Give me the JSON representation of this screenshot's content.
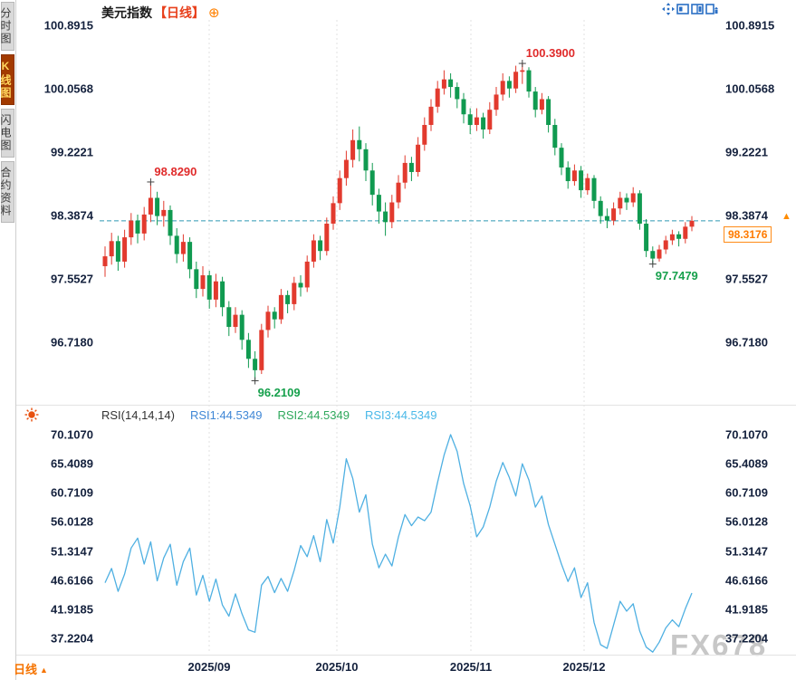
{
  "sidebar": {
    "items": [
      {
        "label": "分时图",
        "active": false
      },
      {
        "label": "K线图",
        "active": true
      },
      {
        "label": "闪电图",
        "active": false
      },
      {
        "label": "合约资料",
        "active": false
      }
    ]
  },
  "header": {
    "symbol": "美元指数",
    "timeframe_tag": "【日线】",
    "add_icon": "⊕"
  },
  "toolbar": {
    "icons": [
      "expand-arrows",
      "layout-single",
      "layout-split",
      "layout-pop-right"
    ]
  },
  "price_panel": {
    "axis_labels": [
      "100.8915",
      "100.0568",
      "99.2221",
      "98.3874",
      "97.5527",
      "96.7180"
    ],
    "current_price": "98.3176",
    "marker_arrow": "▲"
  },
  "rsi_panel": {
    "title": "RSI(14,14,14)",
    "legend": [
      {
        "text": "RSI1:44.5349",
        "color": "#3f87d6"
      },
      {
        "text": "RSI2:44.5349",
        "color": "#2fa85c"
      },
      {
        "text": "RSI3:44.5349",
        "color": "#49b8e8"
      }
    ],
    "axis_labels": [
      "70.1070",
      "65.4089",
      "60.7109",
      "56.0128",
      "51.3147",
      "46.6166",
      "41.9185",
      "37.2204"
    ]
  },
  "x_axis": {
    "labels": [
      "2025/09",
      "2025/10",
      "2025/11",
      "2025/12"
    ]
  },
  "footer": {
    "timeframe": "日线",
    "arrow": "▲"
  },
  "watermark": "FX678",
  "colors": {
    "up": "#e23a2e",
    "down": "#109a50",
    "rsi_line": "#4fb0e2",
    "price_line": "#2f99b4",
    "accent_orange": "#ff8000",
    "annotation_high": "#e02b2b",
    "annotation_low": "#16a04c"
  },
  "chart_data": [
    {
      "type": "candlestick",
      "title": "美元指数 日线 (US Dollar Index, Daily)",
      "y_ticks": [
        100.8915,
        100.0568,
        99.2221,
        98.3874,
        97.5527,
        96.718
      ],
      "x_ticks": [
        "2025/09",
        "2025/10",
        "2025/11",
        "2025/12"
      ],
      "last_price": 98.3176,
      "markers": [
        {
          "label": "98.8290",
          "index": 7,
          "at": "high"
        },
        {
          "label": "100.3900",
          "index": 64,
          "at": "high"
        },
        {
          "label": "96.2109",
          "index": 23,
          "at": "low"
        },
        {
          "label": "97.7479",
          "index": 84,
          "at": "low"
        }
      ],
      "candles": [
        [
          97.72,
          97.98,
          97.58,
          97.85
        ],
        [
          97.85,
          98.16,
          97.74,
          98.05
        ],
        [
          98.05,
          98.12,
          97.66,
          97.78
        ],
        [
          97.78,
          98.2,
          97.7,
          98.1
        ],
        [
          98.1,
          98.42,
          98.0,
          98.32
        ],
        [
          98.32,
          98.4,
          98.02,
          98.15
        ],
        [
          98.15,
          98.5,
          98.06,
          98.4
        ],
        [
          98.4,
          98.829,
          98.3,
          98.62
        ],
        [
          98.62,
          98.7,
          98.26,
          98.38
        ],
        [
          98.38,
          98.58,
          98.24,
          98.46
        ],
        [
          98.46,
          98.52,
          98.0,
          98.12
        ],
        [
          98.12,
          98.22,
          97.76,
          97.88
        ],
        [
          97.88,
          98.14,
          97.78,
          98.04
        ],
        [
          98.04,
          98.1,
          97.56,
          97.68
        ],
        [
          97.68,
          97.78,
          97.3,
          97.42
        ],
        [
          97.42,
          97.72,
          97.32,
          97.6
        ],
        [
          97.6,
          97.66,
          97.16,
          97.28
        ],
        [
          97.28,
          97.62,
          97.18,
          97.52
        ],
        [
          97.52,
          97.58,
          97.06,
          97.18
        ],
        [
          97.18,
          97.26,
          96.8,
          96.92
        ],
        [
          96.92,
          97.18,
          96.84,
          97.08
        ],
        [
          97.08,
          97.14,
          96.62,
          96.75
        ],
        [
          96.75,
          96.84,
          96.38,
          96.5
        ],
        [
          96.5,
          96.6,
          96.2109,
          96.35
        ],
        [
          96.35,
          96.96,
          96.3,
          96.88
        ],
        [
          96.88,
          97.2,
          96.78,
          97.12
        ],
        [
          97.12,
          97.18,
          96.9,
          97.02
        ],
        [
          97.02,
          97.42,
          96.96,
          97.34
        ],
        [
          97.34,
          97.4,
          97.1,
          97.22
        ],
        [
          97.22,
          97.58,
          97.14,
          97.5
        ],
        [
          97.5,
          97.6,
          97.32,
          97.44
        ],
        [
          97.44,
          97.86,
          97.38,
          97.78
        ],
        [
          97.78,
          98.14,
          97.7,
          98.06
        ],
        [
          98.06,
          98.12,
          97.8,
          97.92
        ],
        [
          97.92,
          98.36,
          97.86,
          98.28
        ],
        [
          98.28,
          98.64,
          98.2,
          98.55
        ],
        [
          98.55,
          98.98,
          98.46,
          98.88
        ],
        [
          98.88,
          99.24,
          98.78,
          99.12
        ],
        [
          99.12,
          99.52,
          99.02,
          99.38
        ],
        [
          99.38,
          99.56,
          99.1,
          99.26
        ],
        [
          99.26,
          99.34,
          98.84,
          98.98
        ],
        [
          98.98,
          99.08,
          98.52,
          98.66
        ],
        [
          98.66,
          98.74,
          98.28,
          98.44
        ],
        [
          98.44,
          98.56,
          98.12,
          98.3
        ],
        [
          98.3,
          98.66,
          98.22,
          98.56
        ],
        [
          98.56,
          98.92,
          98.48,
          98.82
        ],
        [
          98.82,
          99.18,
          98.74,
          99.08
        ],
        [
          99.08,
          99.16,
          98.84,
          98.96
        ],
        [
          98.96,
          99.42,
          98.9,
          99.32
        ],
        [
          99.32,
          99.68,
          99.24,
          99.58
        ],
        [
          99.58,
          99.92,
          99.5,
          99.82
        ],
        [
          99.82,
          100.16,
          99.74,
          100.06
        ],
        [
          100.06,
          100.3,
          99.98,
          100.18
        ],
        [
          100.18,
          100.26,
          99.94,
          100.08
        ],
        [
          100.08,
          100.14,
          99.8,
          99.92
        ],
        [
          99.92,
          100.0,
          99.6,
          99.72
        ],
        [
          99.72,
          99.8,
          99.46,
          99.58
        ],
        [
          99.58,
          99.8,
          99.5,
          99.68
        ],
        [
          99.68,
          99.74,
          99.4,
          99.52
        ],
        [
          99.52,
          99.88,
          99.46,
          99.78
        ],
        [
          99.78,
          100.08,
          99.7,
          99.98
        ],
        [
          99.98,
          100.26,
          99.9,
          100.16
        ],
        [
          100.16,
          100.22,
          99.94,
          100.06
        ],
        [
          100.06,
          100.36,
          100.0,
          100.28
        ],
        [
          100.28,
          100.39,
          100.12,
          100.3
        ],
        [
          100.3,
          100.34,
          99.94,
          100.02
        ],
        [
          100.02,
          100.08,
          99.68,
          99.78
        ],
        [
          99.78,
          100.0,
          99.72,
          99.92
        ],
        [
          99.92,
          99.96,
          99.48,
          99.58
        ],
        [
          99.58,
          99.66,
          99.18,
          99.28
        ],
        [
          99.28,
          99.34,
          98.92,
          99.02
        ],
        [
          99.02,
          99.1,
          98.74,
          98.84
        ],
        [
          98.84,
          99.06,
          98.78,
          98.98
        ],
        [
          98.98,
          99.04,
          98.62,
          98.72
        ],
        [
          98.72,
          98.94,
          98.66,
          98.88
        ],
        [
          98.88,
          98.92,
          98.48,
          98.58
        ],
        [
          98.58,
          98.64,
          98.28,
          98.38
        ],
        [
          98.38,
          98.48,
          98.22,
          98.32
        ],
        [
          98.32,
          98.56,
          98.26,
          98.48
        ],
        [
          98.48,
          98.7,
          98.4,
          98.62
        ],
        [
          98.62,
          98.68,
          98.46,
          98.56
        ],
        [
          98.56,
          98.76,
          98.5,
          98.68
        ],
        [
          98.68,
          98.72,
          98.2,
          98.28
        ],
        [
          98.28,
          98.34,
          97.84,
          97.92
        ],
        [
          97.92,
          97.98,
          97.7479,
          97.82
        ],
        [
          97.82,
          98.0,
          97.78,
          97.94
        ],
        [
          97.94,
          98.12,
          97.88,
          98.06
        ],
        [
          98.06,
          98.2,
          98.0,
          98.14
        ],
        [
          98.14,
          98.18,
          97.98,
          98.08
        ],
        [
          98.08,
          98.3,
          98.02,
          98.24
        ],
        [
          98.24,
          98.38,
          98.18,
          98.3176
        ]
      ]
    },
    {
      "type": "line",
      "title": "RSI(14,14,14)",
      "y_ticks": [
        70.107,
        65.4089,
        60.7109,
        56.0128,
        51.3147,
        46.6166,
        41.9185,
        37.2204
      ],
      "note": "RSI1, RSI2, RSI3 all use period 14 and overlap as a single line; current value 44.5349",
      "series": [
        {
          "name": "RSI1",
          "current": 44.5349,
          "values": [
            46.2,
            48.5,
            44.8,
            47.6,
            51.8,
            53.4,
            49.2,
            52.8,
            46.5,
            50.2,
            52.4,
            45.8,
            49.6,
            51.8,
            44.2,
            47.4,
            43.2,
            46.8,
            42.6,
            40.8,
            44.4,
            41.2,
            38.6,
            38.2,
            45.8,
            47.2,
            44.6,
            46.9,
            44.8,
            48.2,
            52.2,
            50.4,
            53.8,
            49.6,
            56.4,
            52.6,
            58.4,
            66.2,
            63.0,
            57.6,
            60.4,
            52.4,
            48.6,
            50.8,
            48.9,
            53.6,
            57.2,
            55.4,
            56.8,
            56.2,
            57.6,
            62.4,
            66.8,
            70.107,
            67.4,
            62.2,
            58.6,
            53.6,
            55.2,
            58.4,
            62.6,
            65.6,
            63.2,
            60.2,
            65.4,
            62.8,
            58.4,
            60.2,
            55.6,
            52.4,
            49.2,
            46.4,
            48.6,
            43.8,
            46.2,
            39.8,
            36.2,
            35.6,
            39.4,
            43.2,
            41.6,
            42.8,
            38.4,
            35.8,
            35.0,
            36.6,
            38.9,
            40.2,
            39.1,
            42.0,
            44.5349
          ]
        }
      ]
    }
  ]
}
